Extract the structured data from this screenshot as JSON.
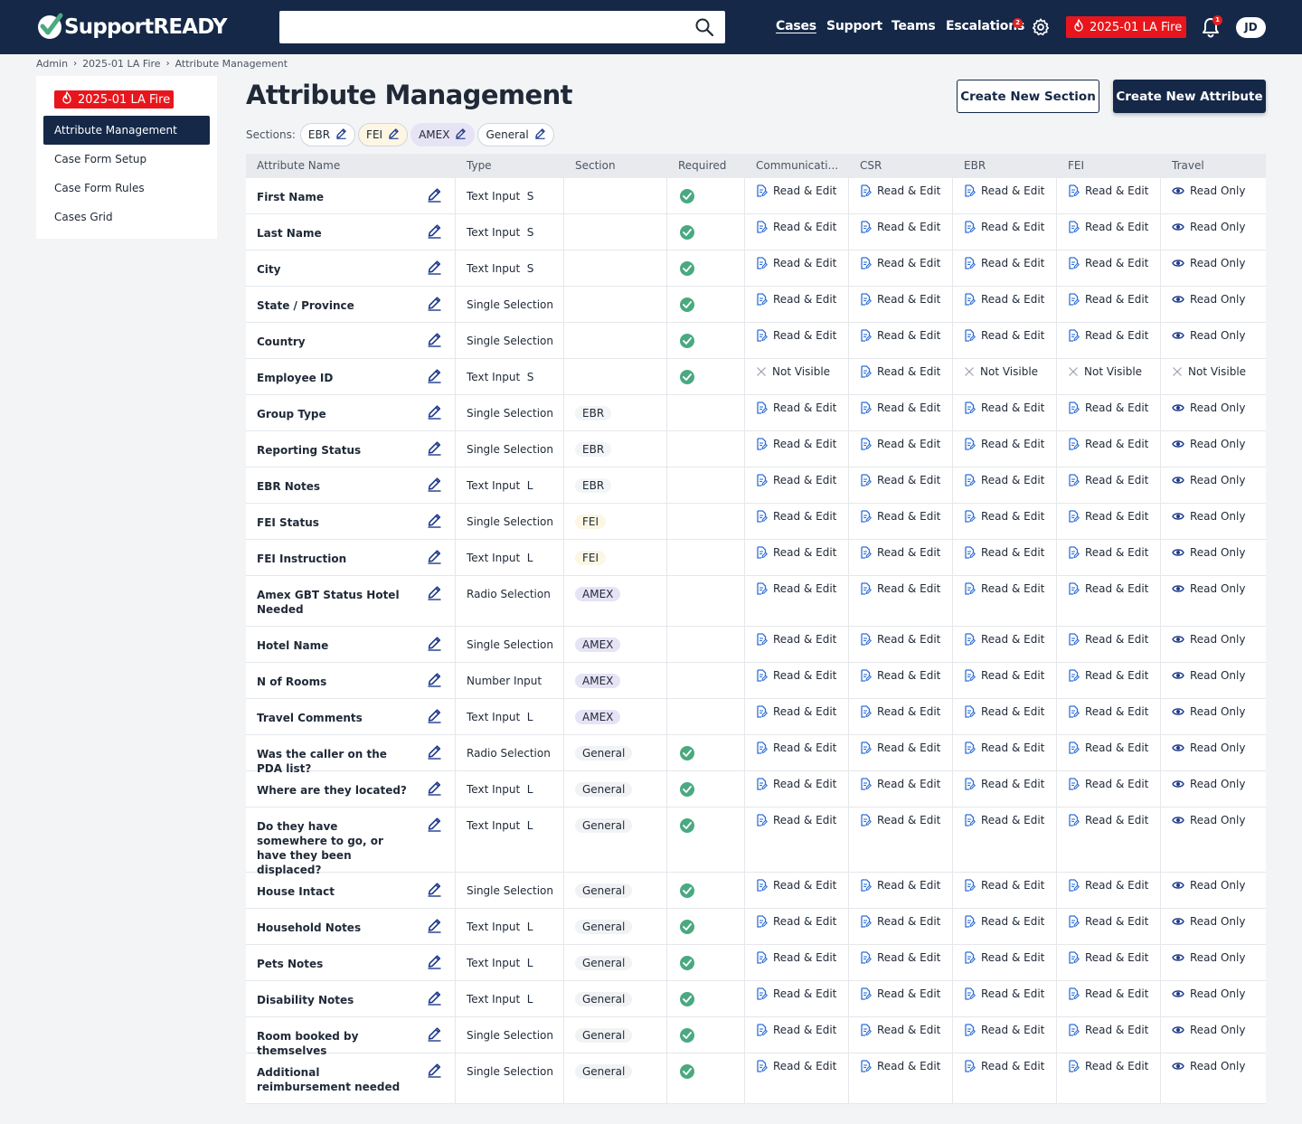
{
  "app": {
    "logo_text": "SupportREADY"
  },
  "nav": {
    "search_placeholder": "",
    "links": [
      "Cases",
      "Support",
      "Teams",
      "Escalations"
    ],
    "escalations_badge": "2",
    "event_label": "2025-01 LA Fire",
    "notifications_badge": "1",
    "avatar_initials": "JD"
  },
  "breadcrumb": [
    "Admin",
    "2025-01 LA Fire",
    "Attribute Management"
  ],
  "sidebar": {
    "event_label": "2025-01 LA Fire",
    "items": [
      "Attribute Management",
      "Case Form Setup",
      "Case Form Rules",
      "Cases Grid"
    ]
  },
  "page": {
    "title": "Attribute Management",
    "create_section_label": "Create New Section",
    "create_attribute_label": "Create New Attribute"
  },
  "sections": {
    "label": "Sections:",
    "chips": [
      "EBR",
      "FEI",
      "AMEX",
      "General"
    ]
  },
  "table": {
    "headers": [
      "Attribute Name",
      "Type",
      "Section",
      "Required",
      "Communicati...",
      "CSR",
      "EBR",
      "FEI",
      "Travel"
    ],
    "permission_labels": {
      "re": "Read & Edit",
      "ro": "Read Only",
      "nv": "Not Visible"
    },
    "rows": [
      {
        "name": "First Name",
        "type": "Text Input  S",
        "section": "",
        "required": true,
        "perms": [
          "re",
          "re",
          "re",
          "re",
          "ro"
        ]
      },
      {
        "name": "Last Name",
        "type": "Text Input  S",
        "section": "",
        "required": true,
        "perms": [
          "re",
          "re",
          "re",
          "re",
          "ro"
        ]
      },
      {
        "name": "City",
        "type": "Text Input  S",
        "section": "",
        "required": true,
        "perms": [
          "re",
          "re",
          "re",
          "re",
          "ro"
        ]
      },
      {
        "name": "State / Province",
        "type": "Single Selection",
        "section": "",
        "required": true,
        "perms": [
          "re",
          "re",
          "re",
          "re",
          "ro"
        ]
      },
      {
        "name": "Country",
        "type": "Single Selection",
        "section": "",
        "required": true,
        "perms": [
          "re",
          "re",
          "re",
          "re",
          "ro"
        ]
      },
      {
        "name": "Employee ID",
        "type": "Text Input  S",
        "section": "",
        "required": true,
        "perms": [
          "nv",
          "re",
          "nv",
          "nv",
          "nv"
        ]
      },
      {
        "name": "Group Type",
        "type": "Single Selection",
        "section": "EBR",
        "required": false,
        "perms": [
          "re",
          "re",
          "re",
          "re",
          "ro"
        ]
      },
      {
        "name": "Reporting Status",
        "type": "Single Selection",
        "section": "EBR",
        "required": false,
        "perms": [
          "re",
          "re",
          "re",
          "re",
          "ro"
        ]
      },
      {
        "name": "EBR Notes",
        "type": "Text Input  L",
        "section": "EBR",
        "required": false,
        "perms": [
          "re",
          "re",
          "re",
          "re",
          "ro"
        ]
      },
      {
        "name": "FEI Status",
        "type": "Single Selection",
        "section": "FEI",
        "required": false,
        "perms": [
          "re",
          "re",
          "re",
          "re",
          "ro"
        ]
      },
      {
        "name": "FEI Instruction",
        "type": "Text Input  L",
        "section": "FEI",
        "required": false,
        "perms": [
          "re",
          "re",
          "re",
          "re",
          "ro"
        ]
      },
      {
        "name": "Amex GBT Status Hotel Needed",
        "type": "Radio Selection",
        "section": "AMEX",
        "required": false,
        "perms": [
          "re",
          "re",
          "re",
          "re",
          "ro"
        ]
      },
      {
        "name": "Hotel Name",
        "type": "Single Selection",
        "section": "AMEX",
        "required": false,
        "perms": [
          "re",
          "re",
          "re",
          "re",
          "ro"
        ]
      },
      {
        "name": "N of Rooms",
        "type": "Number Input",
        "section": "AMEX",
        "required": false,
        "perms": [
          "re",
          "re",
          "re",
          "re",
          "ro"
        ]
      },
      {
        "name": "Travel Comments",
        "type": "Text Input  L",
        "section": "AMEX",
        "required": false,
        "perms": [
          "re",
          "re",
          "re",
          "re",
          "ro"
        ]
      },
      {
        "name": "Was the caller on the PDA list?",
        "type": "Radio Selection",
        "section": "General",
        "required": true,
        "perms": [
          "re",
          "re",
          "re",
          "re",
          "ro"
        ]
      },
      {
        "name": "Where are they located?",
        "type": "Text Input  L",
        "section": "General",
        "required": true,
        "perms": [
          "re",
          "re",
          "re",
          "re",
          "ro"
        ]
      },
      {
        "name": "Do they have somewhere to go, or have they been displaced?",
        "type": "Text Input  L",
        "section": "General",
        "required": true,
        "perms": [
          "re",
          "re",
          "re",
          "re",
          "ro"
        ]
      },
      {
        "name": "House Intact",
        "type": "Single Selection",
        "section": "General",
        "required": true,
        "perms": [
          "re",
          "re",
          "re",
          "re",
          "ro"
        ]
      },
      {
        "name": "Household Notes",
        "type": "Text Input  L",
        "section": "General",
        "required": true,
        "perms": [
          "re",
          "re",
          "re",
          "re",
          "ro"
        ]
      },
      {
        "name": "Pets Notes",
        "type": "Text Input  L",
        "section": "General",
        "required": true,
        "perms": [
          "re",
          "re",
          "re",
          "re",
          "ro"
        ]
      },
      {
        "name": "Disability Notes",
        "type": "Text Input  L",
        "section": "General",
        "required": true,
        "perms": [
          "re",
          "re",
          "re",
          "re",
          "ro"
        ]
      },
      {
        "name": "Room booked by themselves",
        "type": "Single Selection",
        "section": "General",
        "required": true,
        "perms": [
          "re",
          "re",
          "re",
          "re",
          "ro"
        ]
      },
      {
        "name": "Additional reimbursement needed",
        "type": "Single Selection",
        "section": "General",
        "required": true,
        "perms": [
          "re",
          "re",
          "re",
          "re",
          "ro"
        ]
      }
    ]
  },
  "colors": {
    "navy": "#152848",
    "fire_red": "#e8161c",
    "required_green": "#4ba981",
    "icon_blue": "#2f6fd6"
  }
}
